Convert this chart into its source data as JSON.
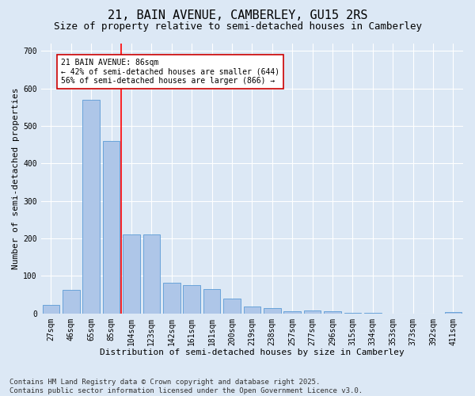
{
  "title": "21, BAIN AVENUE, CAMBERLEY, GU15 2RS",
  "subtitle": "Size of property relative to semi-detached houses in Camberley",
  "xlabel": "Distribution of semi-detached houses by size in Camberley",
  "ylabel": "Number of semi-detached properties",
  "categories": [
    "27sqm",
    "46sqm",
    "65sqm",
    "85sqm",
    "104sqm",
    "123sqm",
    "142sqm",
    "161sqm",
    "181sqm",
    "200sqm",
    "219sqm",
    "238sqm",
    "257sqm",
    "277sqm",
    "296sqm",
    "315sqm",
    "334sqm",
    "353sqm",
    "373sqm",
    "392sqm",
    "411sqm"
  ],
  "values": [
    22,
    62,
    570,
    460,
    210,
    210,
    82,
    75,
    65,
    40,
    18,
    15,
    5,
    8,
    5,
    2,
    2,
    0,
    0,
    0,
    3
  ],
  "bar_color": "#aec6e8",
  "bar_edge_color": "#5b9bd5",
  "red_line_index": 3,
  "annotation_title": "21 BAIN AVENUE: 86sqm",
  "annotation_line1": "← 42% of semi-detached houses are smaller (644)",
  "annotation_line2": "56% of semi-detached houses are larger (866) →",
  "annotation_box_color": "#ffffff",
  "annotation_box_edge_color": "#cc0000",
  "ylim": [
    0,
    720
  ],
  "yticks": [
    0,
    100,
    200,
    300,
    400,
    500,
    600,
    700
  ],
  "footer1": "Contains HM Land Registry data © Crown copyright and database right 2025.",
  "footer2": "Contains public sector information licensed under the Open Government Licence v3.0.",
  "bg_color": "#dce8f5",
  "plot_bg_color": "#dce8f5",
  "title_fontsize": 11,
  "subtitle_fontsize": 9,
  "axis_label_fontsize": 8,
  "tick_fontsize": 7,
  "annotation_fontsize": 7,
  "footer_fontsize": 6.5
}
